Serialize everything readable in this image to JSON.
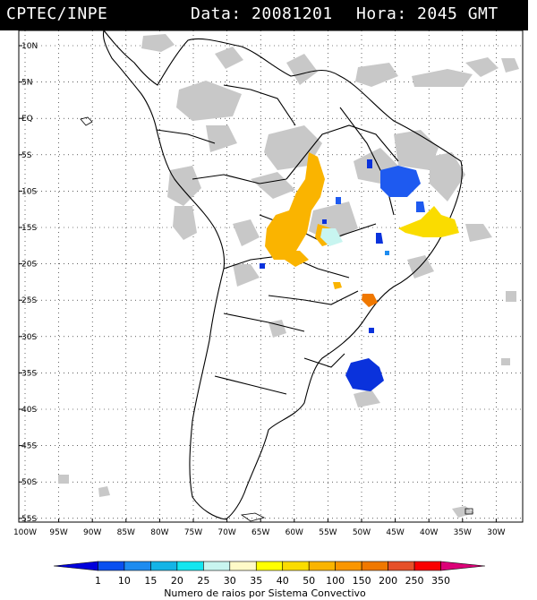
{
  "header": {
    "org": "CPTEC/INPE",
    "date_label": "Data: 20081201",
    "time_label": "Hora: 2045 GMT"
  },
  "lat_labels": [
    "10N",
    "5N",
    "EQ",
    "5S",
    "10S",
    "15S",
    "20S",
    "25S",
    "30S",
    "35S",
    "40S",
    "45S",
    "50S",
    "55S"
  ],
  "lon_labels": [
    "100W",
    "95W",
    "90W",
    "85W",
    "80W",
    "75W",
    "70W",
    "65W",
    "60W",
    "55W",
    "50W",
    "45W",
    "40W",
    "35W",
    "30W"
  ],
  "colorbar": {
    "ticks": [
      "1",
      "10",
      "15",
      "20",
      "25",
      "30",
      "35",
      "40",
      "50",
      "100",
      "150",
      "200",
      "250",
      "350"
    ],
    "colors": [
      "#0000dc",
      "#0a50f0",
      "#1e8cf0",
      "#14b4e6",
      "#14e6f0",
      "#c8f5f0",
      "#fffac8",
      "#ffff00",
      "#fadc00",
      "#fab400",
      "#fa9600",
      "#f07800",
      "#e65028",
      "#fa0000",
      "#dc0078"
    ],
    "caption": "Numero de raios por Sistema Convectivo"
  }
}
